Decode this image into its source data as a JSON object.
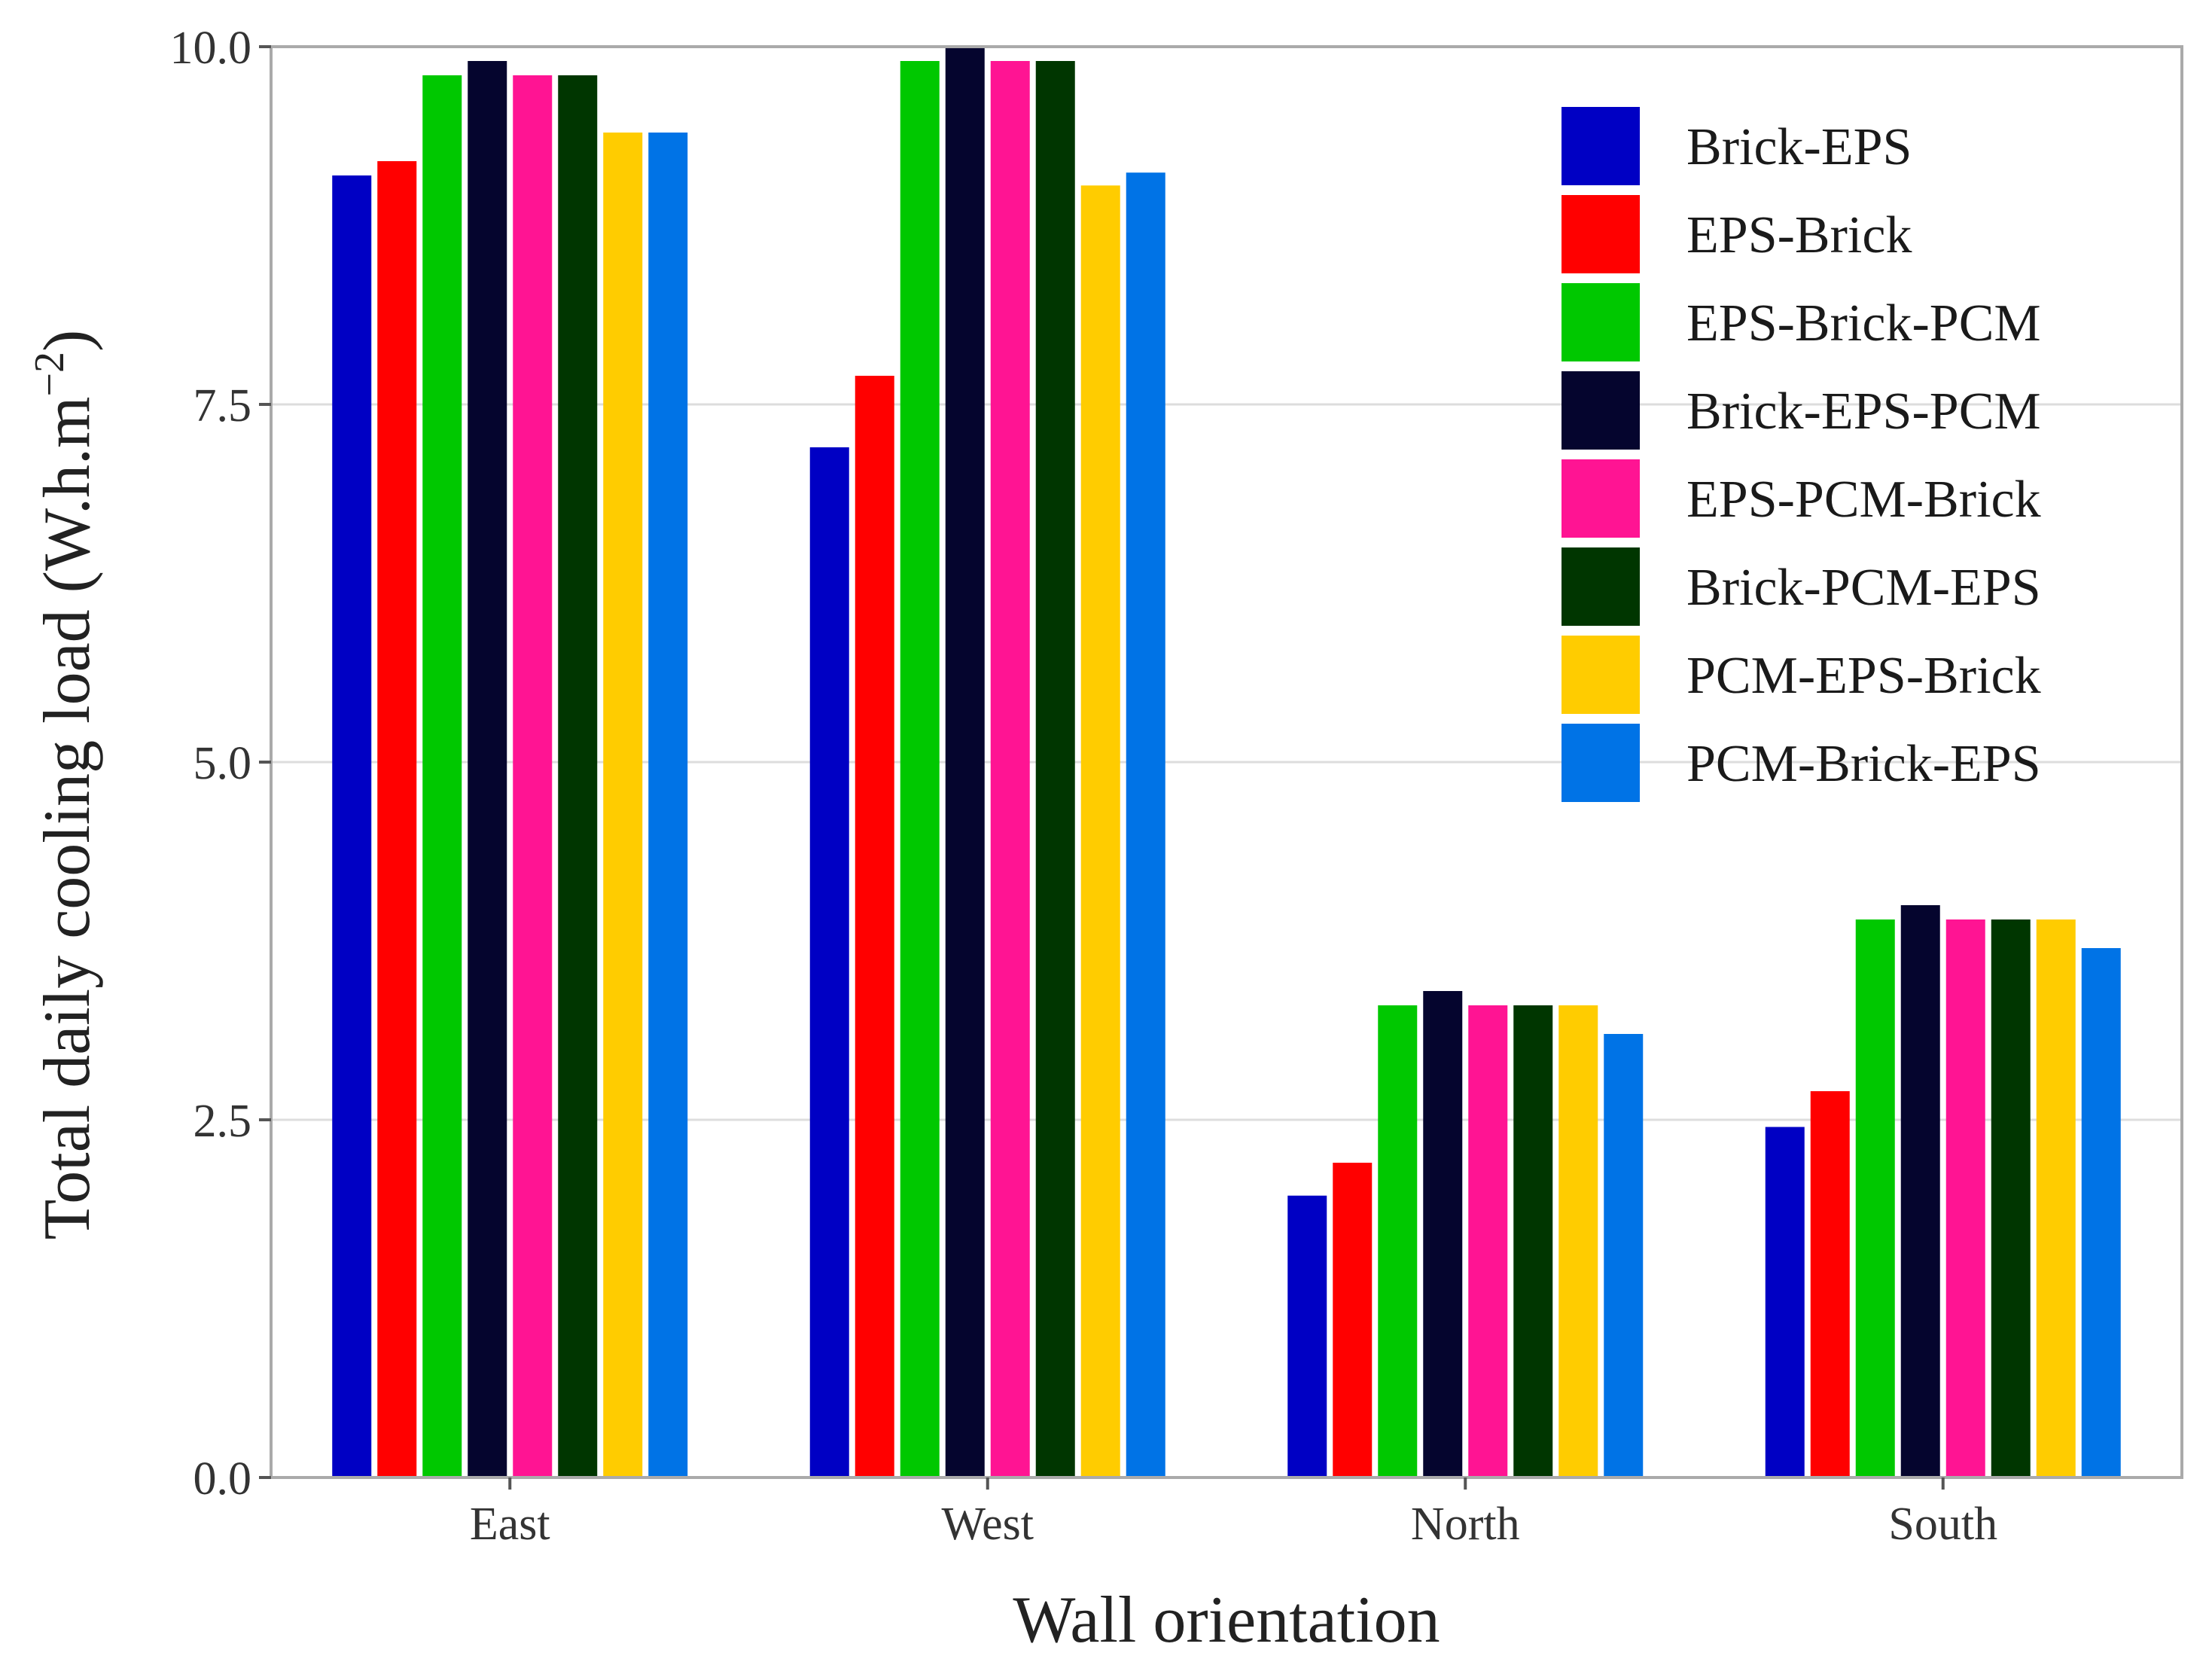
{
  "chart_data": {
    "type": "bar",
    "xlabel": "Wall orientation",
    "ylabel": {
      "main": "Total daily cooling load (W.h.m",
      "superscript": "−2",
      "close": ")"
    },
    "categories": [
      "East",
      "West",
      "North",
      "South"
    ],
    "ylim": [
      0,
      10
    ],
    "yticks": [
      0,
      2.5,
      5,
      7.5,
      10
    ],
    "ytick_labels": [
      "0.0",
      "2.5",
      "5.0",
      "7.5",
      "10.0"
    ],
    "grid": true,
    "legend_position": "top-right",
    "series": [
      {
        "name": "Brick-EPS",
        "color": "#0000c4",
        "values": [
          9.1,
          7.2,
          1.97,
          2.45
        ]
      },
      {
        "name": "EPS-Brick",
        "color": "#ff0000",
        "values": [
          9.2,
          7.7,
          2.2,
          2.7
        ]
      },
      {
        "name": "EPS-Brick-PCM",
        "color": "#00c800",
        "values": [
          9.8,
          9.9,
          3.3,
          3.9
        ]
      },
      {
        "name": "Brick-EPS-PCM",
        "color": "#05052e",
        "values": [
          9.9,
          10.0,
          3.4,
          4.0
        ]
      },
      {
        "name": "EPS-PCM-Brick",
        "color": "#ff1493",
        "values": [
          9.8,
          9.9,
          3.3,
          3.9
        ]
      },
      {
        "name": "Brick-PCM-EPS",
        "color": "#003600",
        "values": [
          9.8,
          9.9,
          3.3,
          3.9
        ]
      },
      {
        "name": "PCM-EPS-Brick",
        "color": "#ffcc00",
        "values": [
          9.4,
          9.03,
          3.3,
          3.9
        ]
      },
      {
        "name": "PCM-Brick-EPS",
        "color": "#0073e6",
        "values": [
          9.4,
          9.12,
          3.1,
          3.7
        ]
      }
    ]
  }
}
